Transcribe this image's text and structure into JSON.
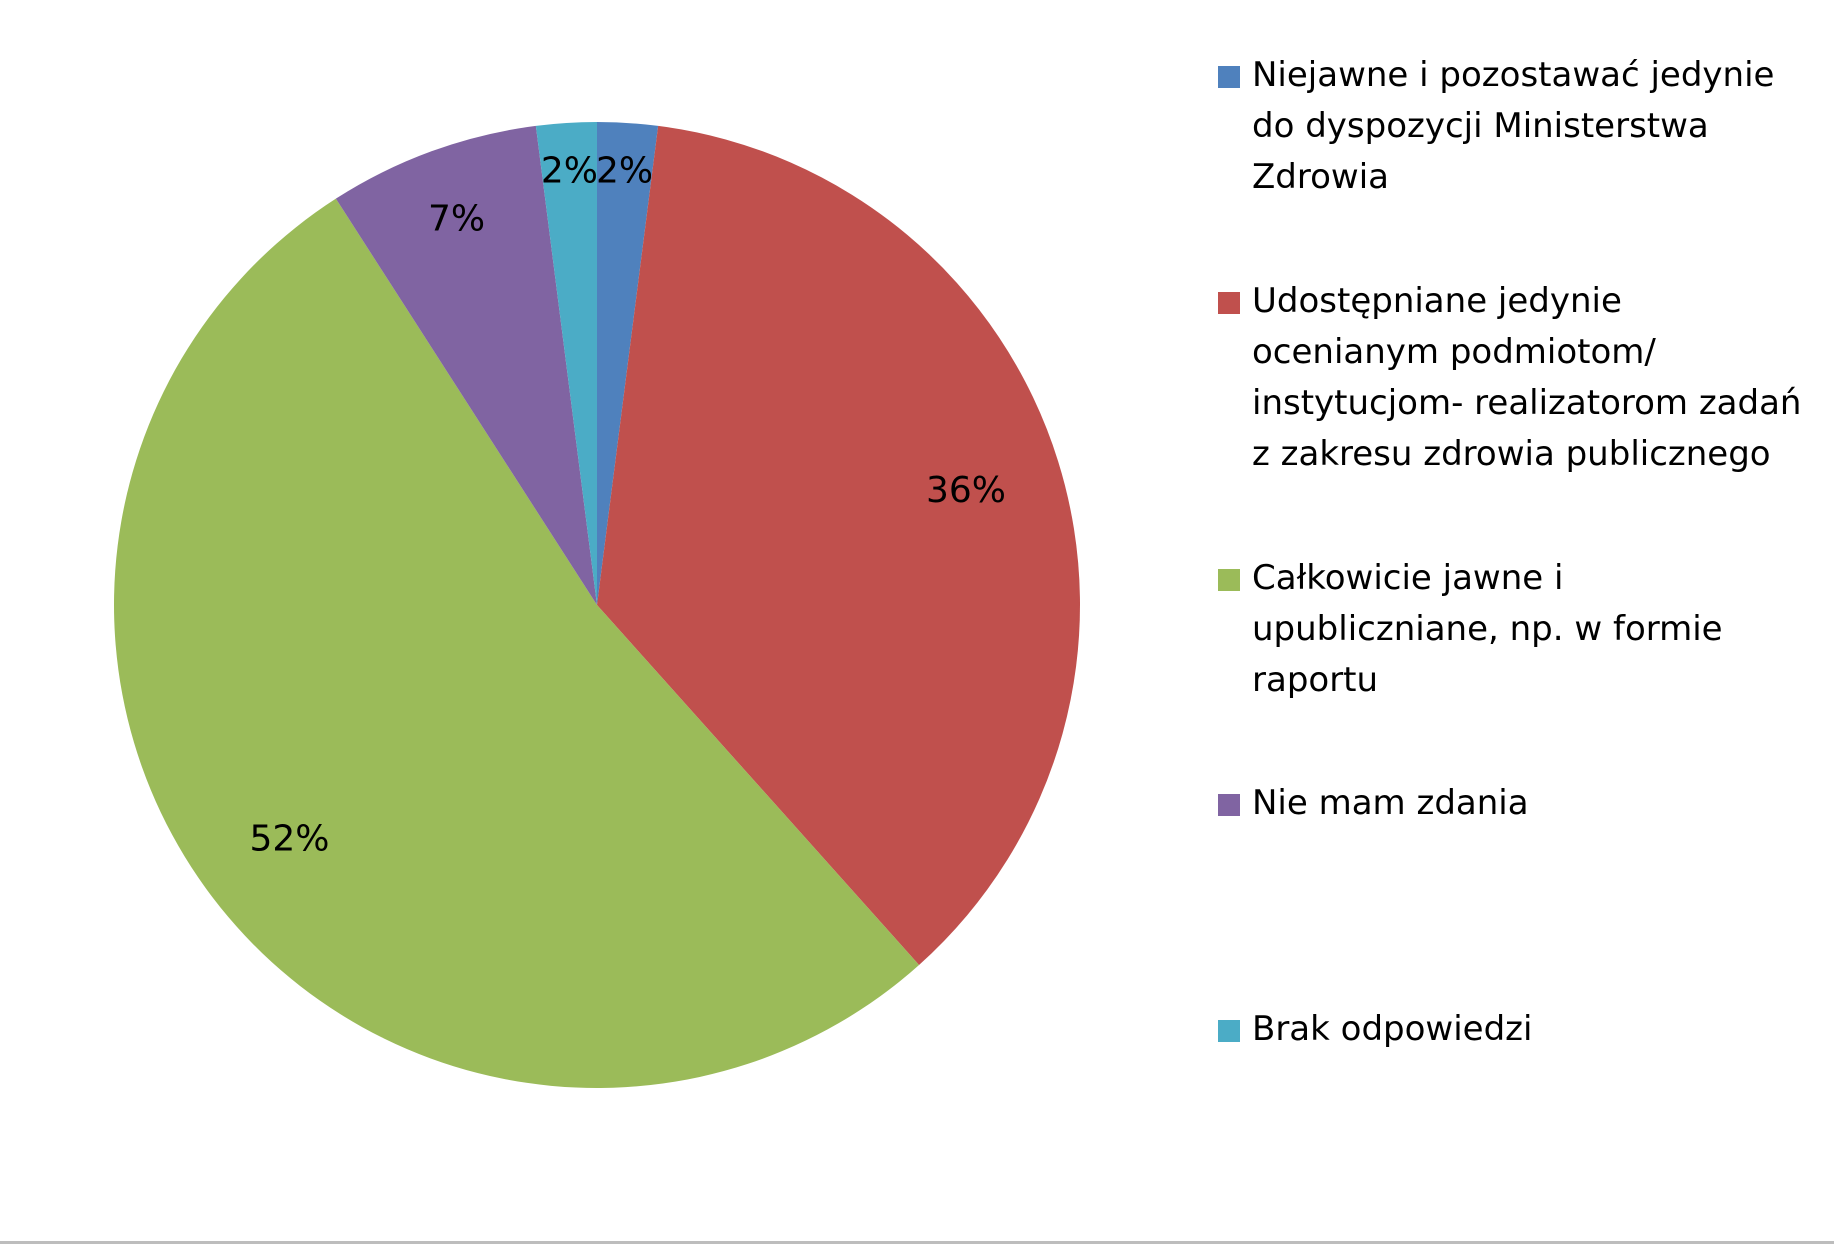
{
  "chart_data": {
    "type": "pie",
    "title": "",
    "start_angle_deg": 0,
    "direction": "clockwise",
    "legend_position": "right",
    "slices": [
      {
        "label": "Niejawne i pozostawać jedynie do dyspozycji Ministerstwa Zdrowia",
        "value": 2,
        "display": "2%",
        "color": "#4f81bd"
      },
      {
        "label": "Udostępniane jedynie ocenianym podmiotom/ instytucjom- realizatorom zadań z zakresu zdrowia publicznego",
        "value": 36,
        "display": "36%",
        "color": "#c0504d"
      },
      {
        "label": "Całkowicie jawne i upubliczniane, np. w formie raportu",
        "value": 52,
        "display": "52%",
        "color": "#9bbb59"
      },
      {
        "label": "Nie mam zdania",
        "value": 7,
        "display": "7%",
        "color": "#8064a2"
      },
      {
        "label": "Brak odpowiedzi",
        "value": 2,
        "display": "2%",
        "color": "#4bacc6"
      }
    ]
  },
  "legend": {
    "items": [
      {
        "text": " Niejawne i pozostawać jedynie\ndo dyspozycji Ministerstwa\nZdrowia",
        "color": "#4f81bd"
      },
      {
        "text": " Udostępniane jedynie\nocenianym podmiotom/\ninstytucjom- realizatorom zadań\nz zakresu zdrowia publicznego",
        "color": "#c0504d"
      },
      {
        "text": "Całkowicie jawne i\nupubliczniane, np. w formie\nraportu",
        "color": "#9bbb59"
      },
      {
        "text": "Nie mam zdania",
        "color": "#8064a2"
      },
      {
        "text": "Brak odpowiedzi",
        "color": "#4bacc6"
      }
    ]
  }
}
